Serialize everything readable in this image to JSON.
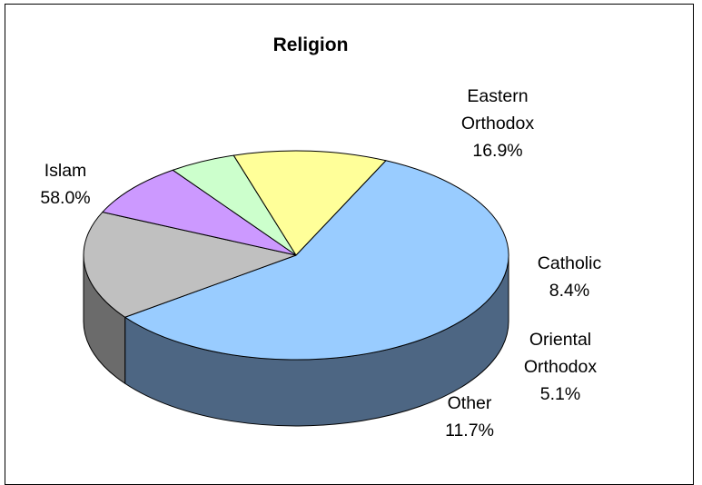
{
  "chart_data": {
    "type": "pie",
    "title": "Religion",
    "slices": [
      {
        "label": [
          "Islam"
        ],
        "value": 58.0,
        "value_label": "58.0%",
        "color": "#99ccff",
        "side_color": "#4d6683"
      },
      {
        "label": [
          "Eastern",
          "Orthodox"
        ],
        "value": 16.9,
        "value_label": "16.9%",
        "color": "#c0c0c0",
        "side_color": "#6b6b6b"
      },
      {
        "label": [
          "Catholic"
        ],
        "value": 8.4,
        "value_label": "8.4%",
        "color": "#cc99ff",
        "side_color": "#6d4f8a"
      },
      {
        "label": [
          "Oriental",
          "Orthodox"
        ],
        "value": 5.1,
        "value_label": "5.1%",
        "color": "#ccffcc",
        "side_color": "#5f7d64"
      },
      {
        "label": [
          "Other"
        ],
        "value": 11.7,
        "value_label": "11.7%",
        "color": "#ffff99",
        "side_color": "#7f7f4a"
      }
    ],
    "style": "3d-pie",
    "legend": "none"
  }
}
